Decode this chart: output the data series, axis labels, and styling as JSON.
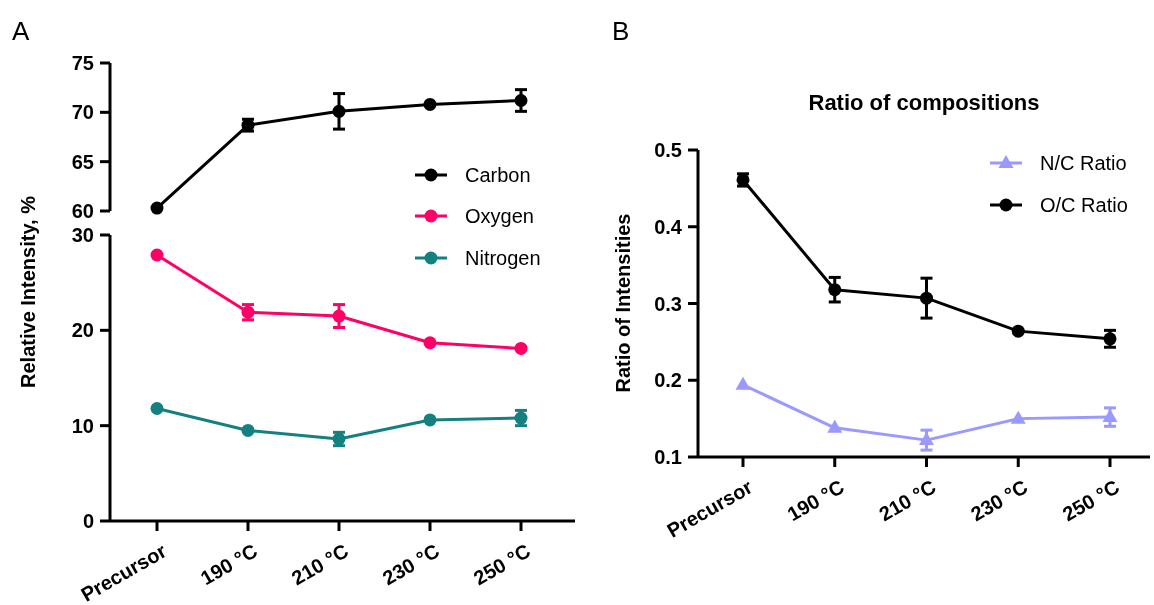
{
  "chart_data": [
    {
      "type": "line",
      "categories": [
        null,
        null,
        null,
        null,
        null
      ],
      "ylim": [
        60,
        75
      ],
      "yticks": [
        60,
        65,
        70,
        75
      ],
      "tick_labels": "y",
      "legend": "right",
      "marker": "circle",
      "annotations": [
        "A"
      ],
      "series": [
        {
          "name": "Carbon",
          "color": "#000000",
          "values": [
            60.3,
            68.7,
            70.1,
            70.8,
            71.2
          ],
          "errors": [
            null,
            0.6,
            1.8,
            null,
            1.1
          ]
        }
      ]
    },
    {
      "type": "line",
      "categories": [
        "Precursor",
        "190 °C",
        "210 °C",
        "230 °C",
        "250 °C"
      ],
      "ylim": [
        0,
        30
      ],
      "yticks": [
        0,
        10,
        20,
        30
      ],
      "ylabel": "Relative Intensity, %",
      "legend": "right",
      "marker": "circle",
      "series": [
        {
          "name": "Oxygen",
          "color": "#ff0066",
          "values": [
            27.9,
            21.9,
            21.5,
            18.7,
            18.1
          ],
          "errors": [
            null,
            0.8,
            1.2,
            null,
            null
          ]
        },
        {
          "name": "Nitrogen",
          "color": "#148080",
          "values": [
            11.8,
            9.5,
            8.6,
            10.6,
            10.8
          ],
          "errors": [
            null,
            null,
            0.7,
            null,
            0.8
          ]
        }
      ]
    },
    {
      "type": "line",
      "title": "Ratio of compositions",
      "categories": [
        "Precursor",
        "190 °C",
        "210 °C",
        "230 °C",
        "250 °C"
      ],
      "ylim": [
        0.1,
        0.5
      ],
      "yticks": [
        0.1,
        0.2,
        0.3,
        0.4,
        0.5
      ],
      "ylabel": "Ratio of Intensities",
      "legend": "top right",
      "annotations": [
        "B"
      ],
      "series": [
        {
          "name": "N/C Ratio",
          "color": "#9999ff",
          "marker": "triangle",
          "values": [
            0.194,
            0.138,
            0.122,
            0.15,
            0.152
          ],
          "errors": [
            null,
            null,
            0.013,
            null,
            0.012
          ]
        },
        {
          "name": "O/C Ratio",
          "color": "#000000",
          "marker": "circle",
          "values": [
            0.461,
            0.318,
            0.307,
            0.264,
            0.254
          ],
          "errors": [
            0.008,
            0.016,
            0.026,
            null,
            0.011
          ]
        }
      ]
    }
  ]
}
